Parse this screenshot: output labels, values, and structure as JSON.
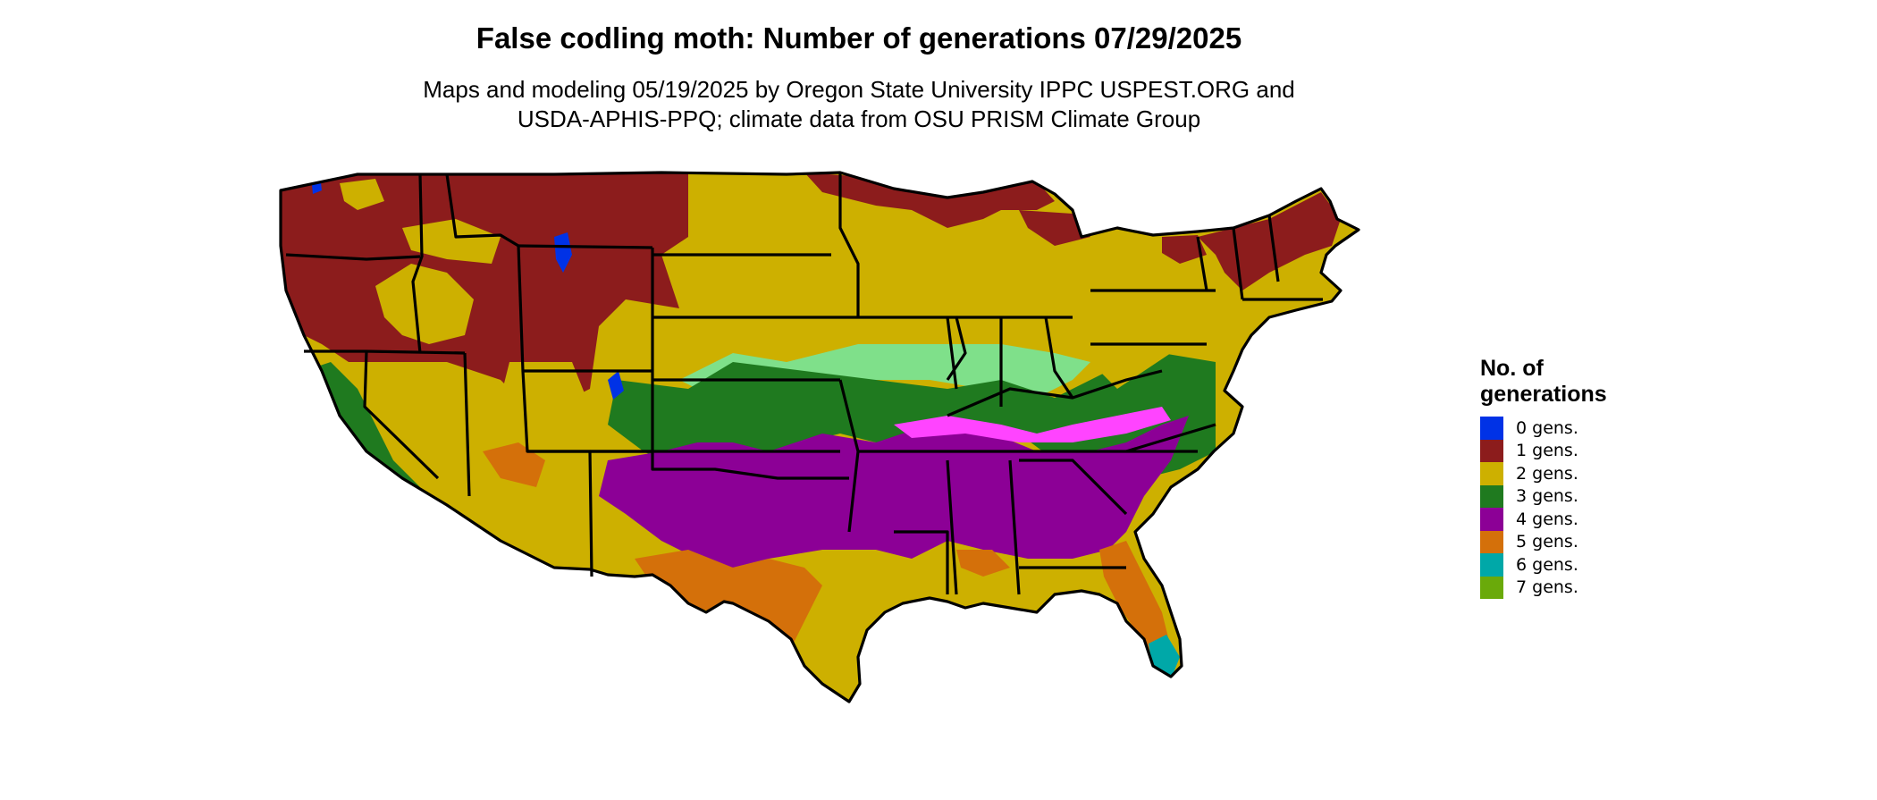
{
  "title": "False codling moth: Number of generations 07/29/2025",
  "subtitle_line1": "Maps and modeling 05/19/2025 by Oregon State University IPPC USPEST.ORG and",
  "subtitle_line2": "USDA-APHIS-PPQ; climate data from OSU PRISM Climate Group",
  "legend": {
    "title_line1": "No. of",
    "title_line2": "generations",
    "items": [
      {
        "label": "0 gens.",
        "color": "#0032e6"
      },
      {
        "label": "1 gens.",
        "color": "#8c1c1c"
      },
      {
        "label": "2 gens.",
        "color": "#cdb000"
      },
      {
        "label": "3 gens.",
        "color": "#1f7a1f"
      },
      {
        "label": "4 gens.",
        "color": "#8c0096"
      },
      {
        "label": "5 gens.",
        "color": "#d4700a"
      },
      {
        "label": "6 gens.",
        "color": "#00a8a8"
      },
      {
        "label": "7 gens.",
        "color": "#6aaa0a"
      }
    ]
  },
  "map_region": "Contiguous United States",
  "colors": {
    "gen1_light": "#c23a1a",
    "gen2_light": "#ffff00",
    "gen3_light": "#7fe08a",
    "gen4_light": "#ff44ff",
    "gen5_light": "#f0a040",
    "gen6_light": "#33e6e6"
  }
}
